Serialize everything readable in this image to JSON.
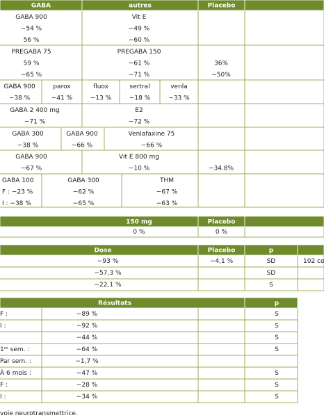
{
  "table1": {
    "header": [
      "GABA",
      "autres",
      "Placebo"
    ],
    "rows": [
      [
        [
          "GABA 900",
          "−54 %",
          "56 %"
        ],
        [
          "Vit E",
          "−49 %",
          "−60 %"
        ]
      ],
      [
        [
          "PREGABA 75",
          "59 %",
          "−65 %"
        ],
        [
          "PREGABA 150",
          "−61 %",
          "−71 %"
        ],
        [
          "36%",
          "−50%"
        ]
      ],
      [
        [
          "GABA 900",
          "−38 %"
        ],
        [
          "parox",
          "−41 %"
        ],
        [
          "fluox",
          "−13 %"
        ],
        [
          "sertral",
          "−18 %"
        ],
        [
          "venla",
          "−33 %"
        ]
      ],
      [
        [
          "GABA 2 400 mg",
          "−71 %"
        ],
        [
          "E2",
          "−72 %"
        ]
      ],
      [
        [
          "GABA 300",
          "−38 %"
        ],
        [
          "GABA 900",
          "−66 %"
        ],
        [
          "Venlafaxine 75",
          "−66 %"
        ]
      ],
      [
        [
          "GABA 900",
          "−67 %"
        ],
        [
          "Vit E 800 mg",
          "−10 %"
        ],
        [
          "−34.8%"
        ]
      ],
      [
        [
          "GABA 100",
          "F : −23 %",
          "I : −38 %"
        ],
        [
          "GABA 300",
          "−62 %",
          "−65 %"
        ],
        [
          "THM",
          "−67 %",
          "−63 %"
        ]
      ]
    ]
  },
  "table2": {
    "header": [
      "150 mg",
      "Placebo"
    ],
    "rows": [
      [
        [
          "0 %"
        ],
        [
          "0 %"
        ]
      ]
    ]
  },
  "table3": {
    "header": [
      "Dose",
      "Placebo",
      "p"
    ],
    "rows": [
      [
        [
          "−93 %"
        ],
        [
          "−4,1 %"
        ],
        [
          "SD"
        ],
        [
          "102 ce"
        ]
      ],
      [
        [
          "−57,3 %"
        ],
        [
          "SD"
        ]
      ],
      [
        [
          "−22,1 %"
        ],
        [
          "S"
        ]
      ]
    ]
  },
  "table4": {
    "header": [
      "Résultats",
      "p"
    ],
    "rows": [
      [
        [
          "F :"
        ],
        [
          "−89 %"
        ],
        [
          "S"
        ]
      ],
      [
        [
          "I :"
        ],
        [
          "−92 %"
        ],
        [
          "S"
        ]
      ],
      [
        [
          "−44 %"
        ],
        [
          "S"
        ]
      ],
      [
        [
          "1ʳᵉ sem. :"
        ],
        [
          "−64 %"
        ],
        [
          "S"
        ]
      ],
      [
        [
          "Par sem. :"
        ],
        [
          "−1,7 %"
        ]
      ],
      [
        [
          "À 6 mois :"
        ],
        [
          "−47 %"
        ],
        [
          "S"
        ]
      ],
      [
        [
          "F :"
        ],
        [
          "−28 %"
        ],
        [
          "S"
        ]
      ],
      [
        [
          "I :"
        ],
        [
          "−34 %"
        ],
        [
          "S"
        ]
      ]
    ]
  },
  "footer": "voie neurotransmettrice."
}
